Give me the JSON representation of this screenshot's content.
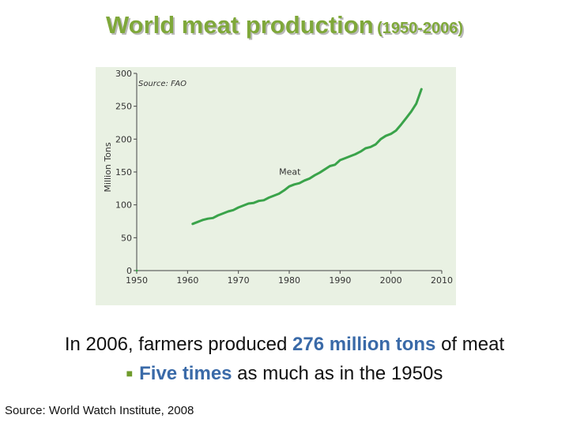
{
  "slide": {
    "title_main": "World meat production",
    "title_sub": "(1950-2006)",
    "bullet1": {
      "pre": "In 2006, farmers produced ",
      "highlight": "276 million tons",
      "post": " of meat"
    },
    "bullet2": {
      "bullet_icon": "square-bullet-icon",
      "highlight": "Five times",
      "post": " as much as in the 1950s"
    },
    "source_footer": "Source: World Watch Institute, 2008"
  },
  "colors": {
    "title": "#7fa83a",
    "highlight": "#3a6aa8",
    "chart_bg": "#e9f1e3",
    "series_line": "#3aa34a"
  },
  "chart_data": {
    "type": "line",
    "title": "",
    "source_note": "Source: FAO",
    "xlabel": "",
    "ylabel": "Million Tons",
    "xlim": [
      1950,
      2010
    ],
    "ylim": [
      0,
      300
    ],
    "xticks": [
      1950,
      1960,
      1970,
      1980,
      1990,
      2000,
      2010
    ],
    "yticks": [
      0,
      50,
      100,
      150,
      200,
      250,
      300
    ],
    "grid": false,
    "series": [
      {
        "name": "Meat",
        "x": [
          1961,
          1962,
          1963,
          1964,
          1965,
          1966,
          1967,
          1968,
          1969,
          1970,
          1971,
          1972,
          1973,
          1974,
          1975,
          1976,
          1977,
          1978,
          1979,
          1980,
          1981,
          1982,
          1983,
          1984,
          1985,
          1986,
          1987,
          1988,
          1989,
          1990,
          1991,
          1992,
          1993,
          1994,
          1995,
          1996,
          1997,
          1998,
          1999,
          2000,
          2001,
          2002,
          2003,
          2004,
          2005,
          2006
        ],
        "y": [
          71,
          74,
          77,
          79,
          80,
          84,
          87,
          90,
          92,
          96,
          99,
          102,
          103,
          106,
          107,
          111,
          114,
          117,
          122,
          128,
          131,
          133,
          137,
          140,
          145,
          149,
          154,
          159,
          161,
          168,
          171,
          174,
          177,
          181,
          186,
          188,
          192,
          200,
          205,
          208,
          213,
          222,
          232,
          242,
          254,
          276
        ]
      }
    ],
    "annotations": [
      {
        "text": "Meat",
        "x": 1978,
        "y": 146
      }
    ]
  }
}
